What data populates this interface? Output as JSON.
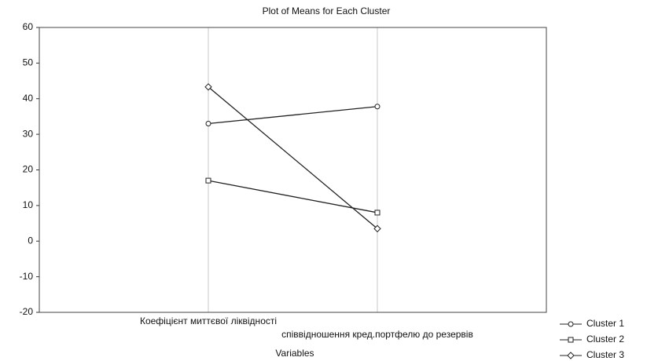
{
  "chart_data": {
    "type": "line",
    "title": "Plot of Means for Each Cluster",
    "xlabel": "Variables",
    "categories": [
      "Коефіцієнт миттєвої ліквідності",
      "співвідношення кред.портфелю до резервів"
    ],
    "series": [
      {
        "name": "Cluster  1",
        "color": "#222222",
        "marker": "circle",
        "values": [
          33,
          37.8
        ]
      },
      {
        "name": "Cluster  2",
        "color": "#222222",
        "marker": "square",
        "values": [
          17,
          8
        ]
      },
      {
        "name": "Cluster  3",
        "color": "#222222",
        "marker": "diamond",
        "values": [
          43.3,
          3.5
        ]
      }
    ],
    "ylim": [
      -20,
      60
    ],
    "yticks": [
      -20,
      -10,
      0,
      10,
      20,
      30,
      40,
      50,
      60
    ],
    "grid": true,
    "legend": "bottom-right"
  }
}
